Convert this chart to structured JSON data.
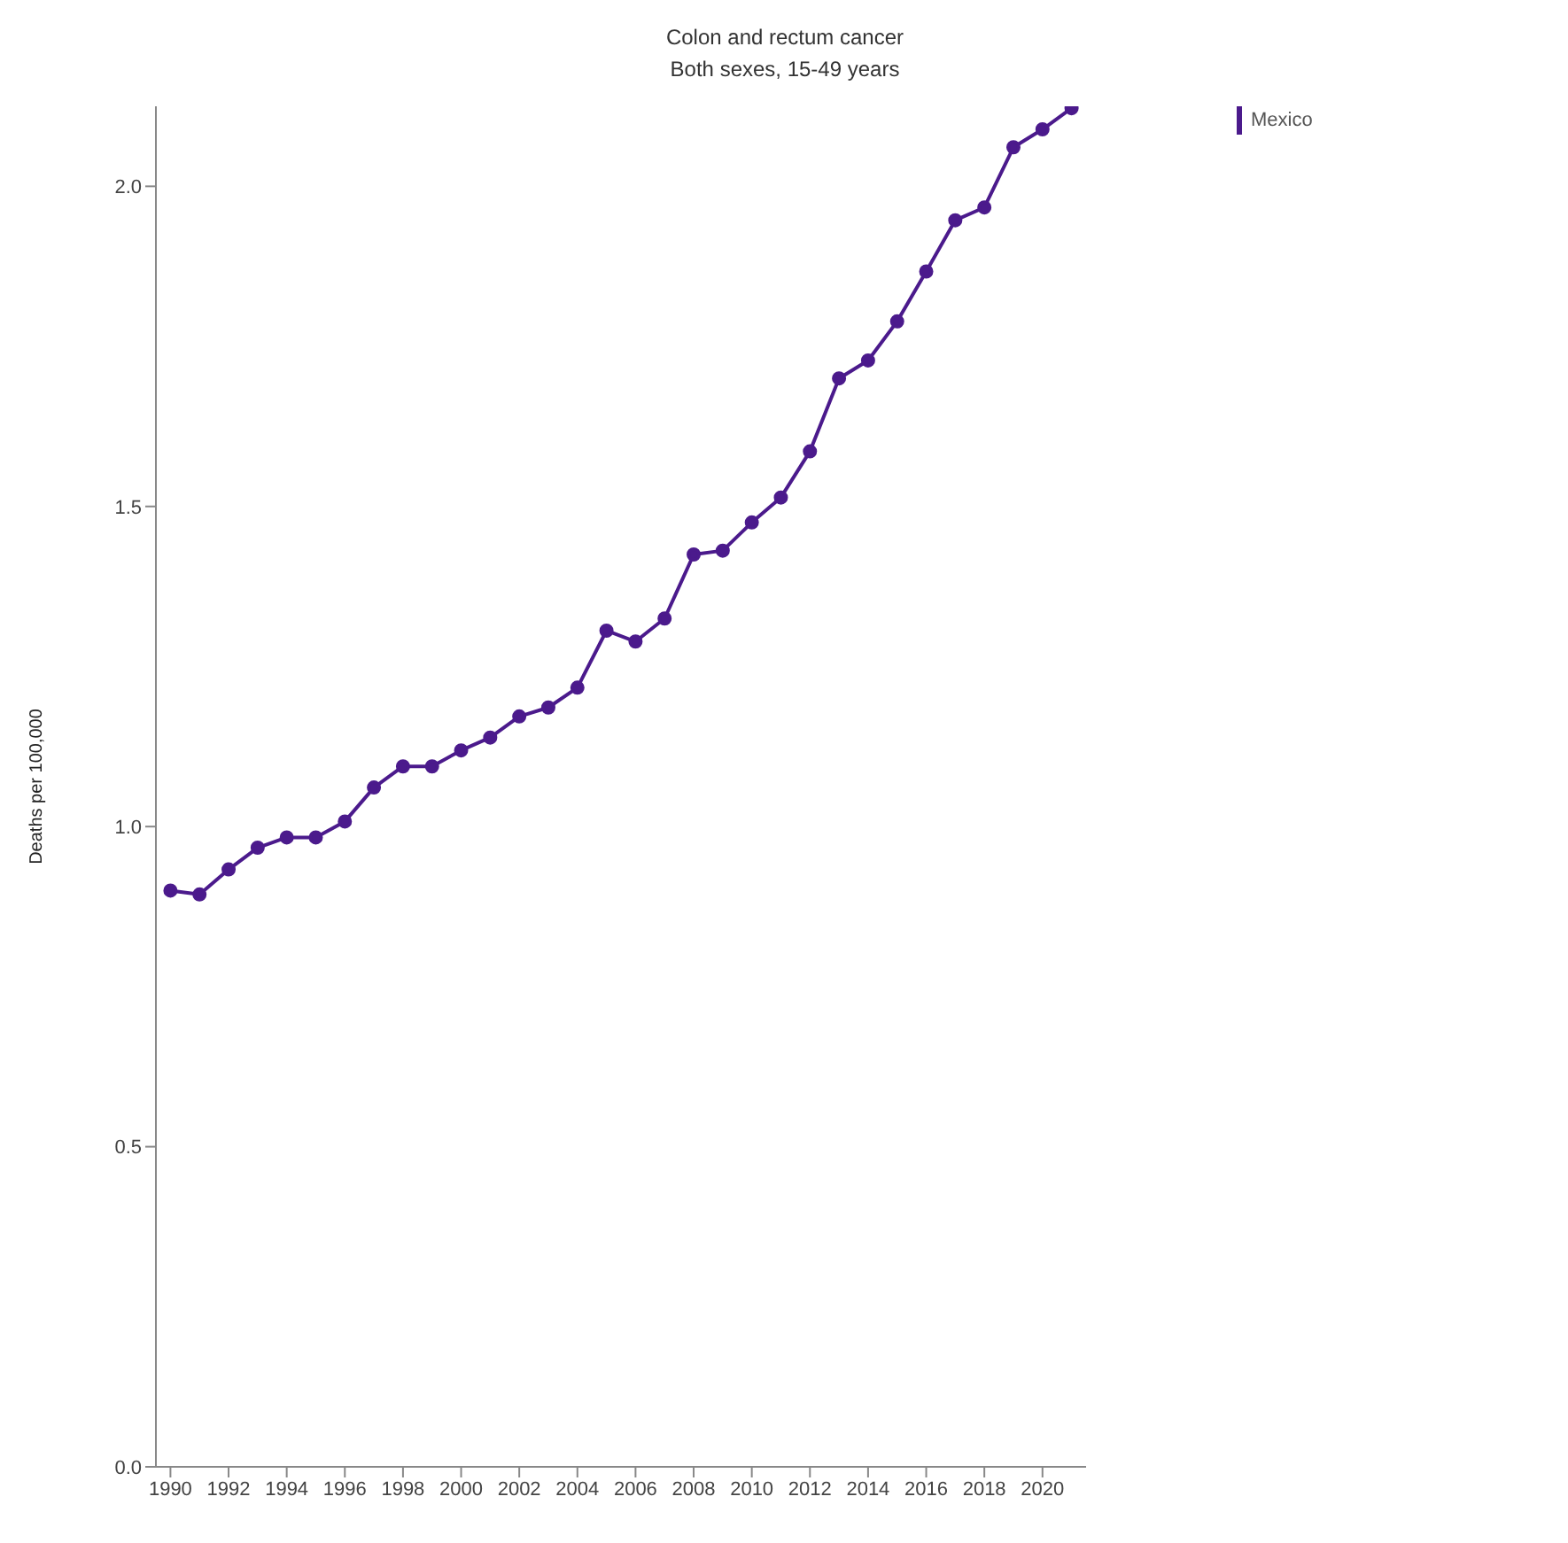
{
  "chart_data": {
    "type": "line",
    "title": "Colon and rectum cancer",
    "subtitle": "Both sexes, 15-49 years",
    "ylabel": "Deaths per 100,000",
    "x": [
      1990,
      1991,
      1992,
      1993,
      1994,
      1995,
      1996,
      1997,
      1998,
      1999,
      2000,
      2001,
      2002,
      2003,
      2004,
      2005,
      2006,
      2007,
      2008,
      2009,
      2010,
      2011,
      2012,
      2013,
      2014,
      2015,
      2016,
      2017,
      2018,
      2019,
      2020,
      2021
    ],
    "series": [
      {
        "name": "Mexico",
        "color": "#4b1a8c",
        "values": [
          0.9,
          0.894,
          0.933,
          0.967,
          0.983,
          0.983,
          1.008,
          1.061,
          1.094,
          1.094,
          1.119,
          1.139,
          1.172,
          1.186,
          1.217,
          1.306,
          1.289,
          1.325,
          1.425,
          1.431,
          1.475,
          1.514,
          1.586,
          1.7,
          1.728,
          1.789,
          1.867,
          1.947,
          1.967,
          2.061,
          2.089,
          2.122
        ]
      }
    ],
    "xlim": [
      1989.5,
      2021.5
    ],
    "xticks": [
      1990,
      1992,
      1994,
      1996,
      1998,
      2000,
      2002,
      2004,
      2006,
      2008,
      2010,
      2012,
      2014,
      2016,
      2018,
      2020
    ],
    "ylim": [
      0,
      2.125
    ],
    "yticks": [
      {
        "value": 0,
        "label": "0.0"
      },
      {
        "value": 0.5,
        "label": "0.5"
      },
      {
        "value": 1,
        "label": "1.0"
      },
      {
        "value": 1.5,
        "label": "1.5"
      },
      {
        "value": 2,
        "label": "2.0"
      }
    ],
    "grid": false,
    "legend": "top right",
    "marker": "circle",
    "line_style": "solid"
  }
}
